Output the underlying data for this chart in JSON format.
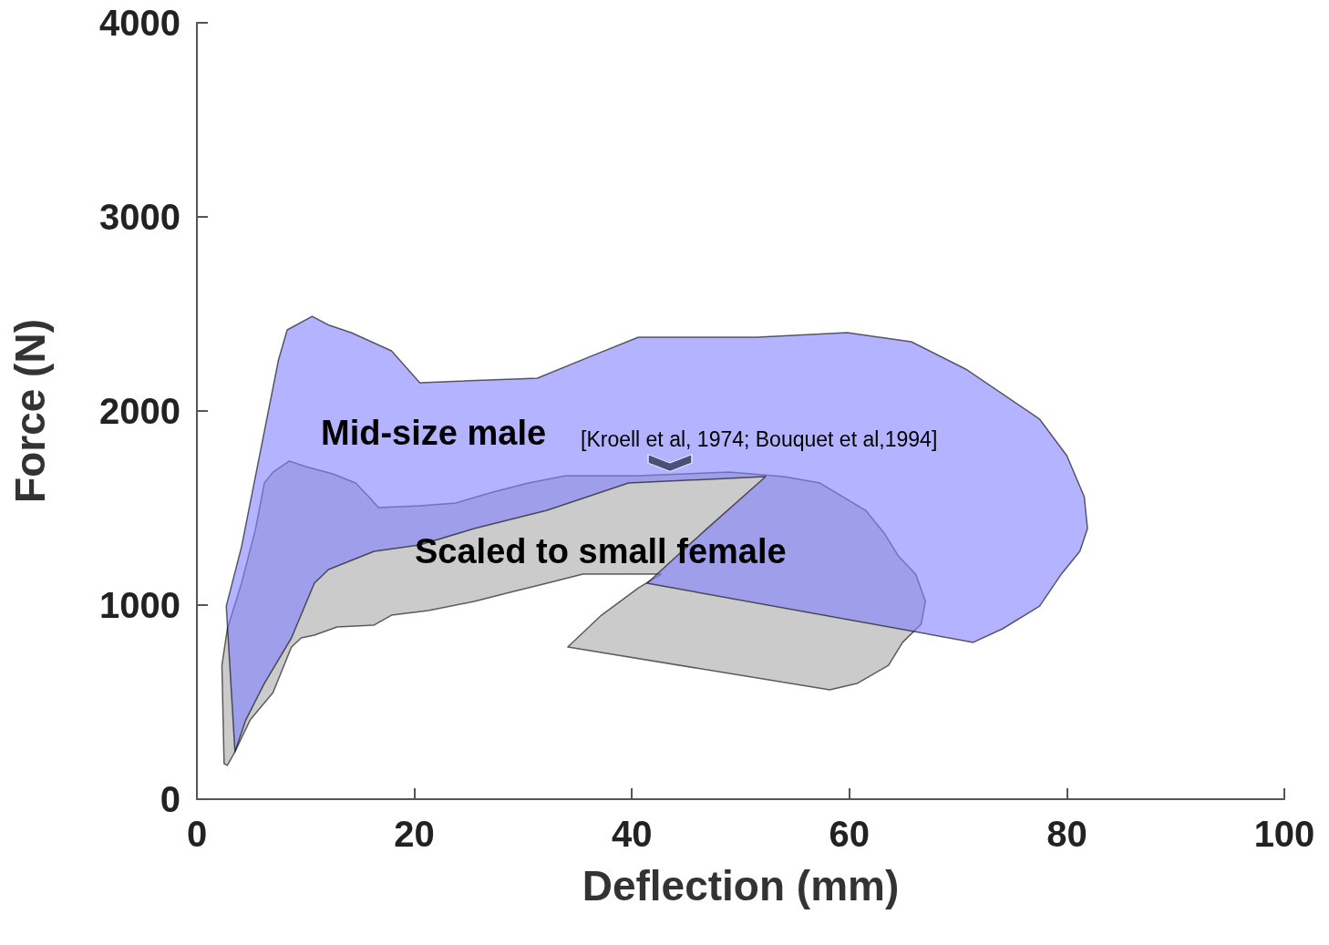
{
  "chart_data": {
    "type": "area",
    "xlabel": "Deflection (mm)",
    "ylabel": "Force (N)",
    "xlim": [
      0,
      100
    ],
    "xticks": [
      0,
      20,
      40,
      60,
      80,
      100
    ],
    "ylim": [
      0,
      4000
    ],
    "yticks": [
      0,
      1000,
      2000,
      3000,
      4000
    ],
    "grid": false,
    "legend": false,
    "annotations": [
      "[Kroell et al, 1974; Bouquet et al,1994]"
    ],
    "series": [
      {
        "name": "Scaled to small female",
        "color": "#a9a9a9",
        "x": [
          2.3,
          2.8,
          4.1,
          5.4,
          6.2,
          7.0,
          8.5,
          10.0,
          12.5,
          14.6,
          15.8,
          16.7,
          20.5,
          23.8,
          27.2,
          30.5,
          33.9,
          40.6,
          44.8,
          49.0,
          54.0,
          57.3,
          61.5,
          63.2,
          64.5,
          66.1,
          67.0,
          66.6,
          64.9,
          63.6,
          60.7,
          58.2,
          34.1,
          37.2,
          40.6,
          42.7,
          40.6,
          35.5,
          32.2,
          28.8,
          25.5,
          21.3,
          17.9,
          16.3,
          12.9,
          10.8,
          9.6,
          8.7,
          7.0,
          4.9,
          3.5,
          2.8,
          2.5
        ],
        "values": [
          690,
          878,
          1113,
          1394,
          1629,
          1685,
          1742,
          1714,
          1676,
          1629,
          1559,
          1502,
          1512,
          1526,
          1582,
          1629,
          1667,
          1667,
          1676,
          1685,
          1662,
          1629,
          1488,
          1371,
          1254,
          1160,
          1019,
          901,
          808,
          690,
          596,
          563,
          784,
          948,
          1089,
          1160,
          1160,
          1160,
          1113,
          1066,
          1019,
          972,
          948,
          897,
          887,
          845,
          831,
          784,
          549,
          408,
          244,
          174,
          183
        ]
      },
      {
        "name": "Mid-size male",
        "color": "#8080ff",
        "x": [
          3.5,
          2.7,
          4.1,
          7.5,
          8.3,
          10.6,
          12.2,
          14.2,
          17.9,
          20.5,
          31.3,
          36.4,
          40.6,
          51.5,
          59.8,
          65.7,
          70.7,
          77.5,
          80.0,
          81.6,
          81.9,
          81.2,
          79.5,
          77.5,
          74.1,
          71.4,
          41.4,
          46.9,
          52.3,
          39.7,
          32.2,
          25.5,
          20.5,
          16.3,
          12.1,
          10.8,
          8.7,
          6.2,
          4.5
        ],
        "values": [
          244,
          995,
          1300,
          2263,
          2418,
          2488,
          2441,
          2404,
          2310,
          2146,
          2169,
          2286,
          2380,
          2380,
          2404,
          2357,
          2216,
          1958,
          1770,
          1559,
          1394,
          1277,
          1160,
          995,
          878,
          808,
          1113,
          1394,
          1662,
          1629,
          1488,
          1394,
          1310,
          1277,
          1183,
          1113,
          831,
          596,
          408
        ]
      }
    ]
  }
}
